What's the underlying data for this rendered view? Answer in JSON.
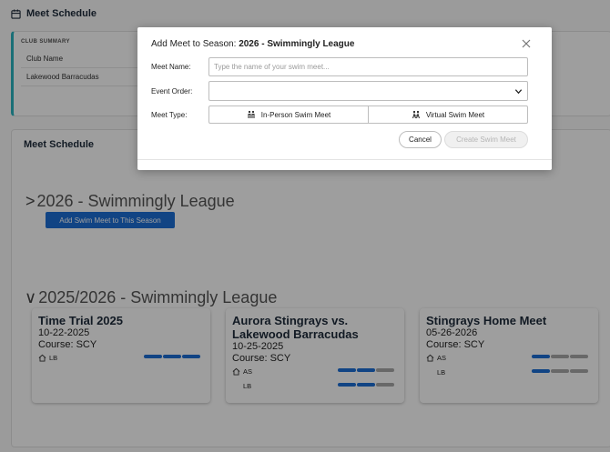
{
  "page": {
    "title": "Meet Schedule",
    "calendar_icon": "calendar-icon"
  },
  "club_summary": {
    "label": "CLUB SUMMARY",
    "field_label": "Club Name",
    "field_value": "Lakewood Barracudas"
  },
  "schedule": {
    "title": "Meet Schedule",
    "seasons": [
      {
        "chevron": ">",
        "name": "2026 - Swimmingly League",
        "add_button": "Add Swim Meet to This Season"
      },
      {
        "chevron": "∨",
        "name": "2025/2026 - Swimmingly League"
      }
    ],
    "meets": [
      {
        "name": "Time Trial 2025",
        "date": "10-22-2025",
        "course": "Course: SCY",
        "lanes": [
          {
            "home": true,
            "label": "LB",
            "progress": [
              1,
              1,
              1
            ]
          }
        ]
      },
      {
        "name": "Aurora Stingrays vs. Lakewood Barracudas",
        "date": "10-25-2025",
        "course": "Course: SCY",
        "lanes": [
          {
            "home": true,
            "label": "AS",
            "progress": [
              1,
              1,
              0
            ]
          },
          {
            "home": false,
            "label": "LB",
            "progress": [
              1,
              1,
              0
            ]
          }
        ]
      },
      {
        "name": "Stingrays Home Meet",
        "date": "05-26-2026",
        "course": "Course: SCY",
        "lanes": [
          {
            "home": true,
            "label": "AS",
            "progress": [
              1,
              0,
              0
            ]
          },
          {
            "home": false,
            "label": "LB",
            "progress": [
              1,
              0,
              0
            ]
          }
        ]
      }
    ]
  },
  "modal": {
    "title_prefix": "Add Meet to Season:",
    "title_season": "2026 - Swimmingly League",
    "meet_name_label": "Meet Name:",
    "meet_name_placeholder": "Type the name of your swim meet...",
    "meet_name_value": "",
    "event_order_label": "Event Order:",
    "event_order_value": "",
    "meet_type_label": "Meet Type:",
    "type_options": [
      "In-Person Swim Meet",
      "Virtual Swim Meet"
    ],
    "cancel_label": "Cancel",
    "create_label": "Create Swim Meet"
  },
  "colors": {
    "accent": "#1c6fd6",
    "club_border": "#2bb3c0",
    "inactive_bar": "#a8a8a8"
  }
}
